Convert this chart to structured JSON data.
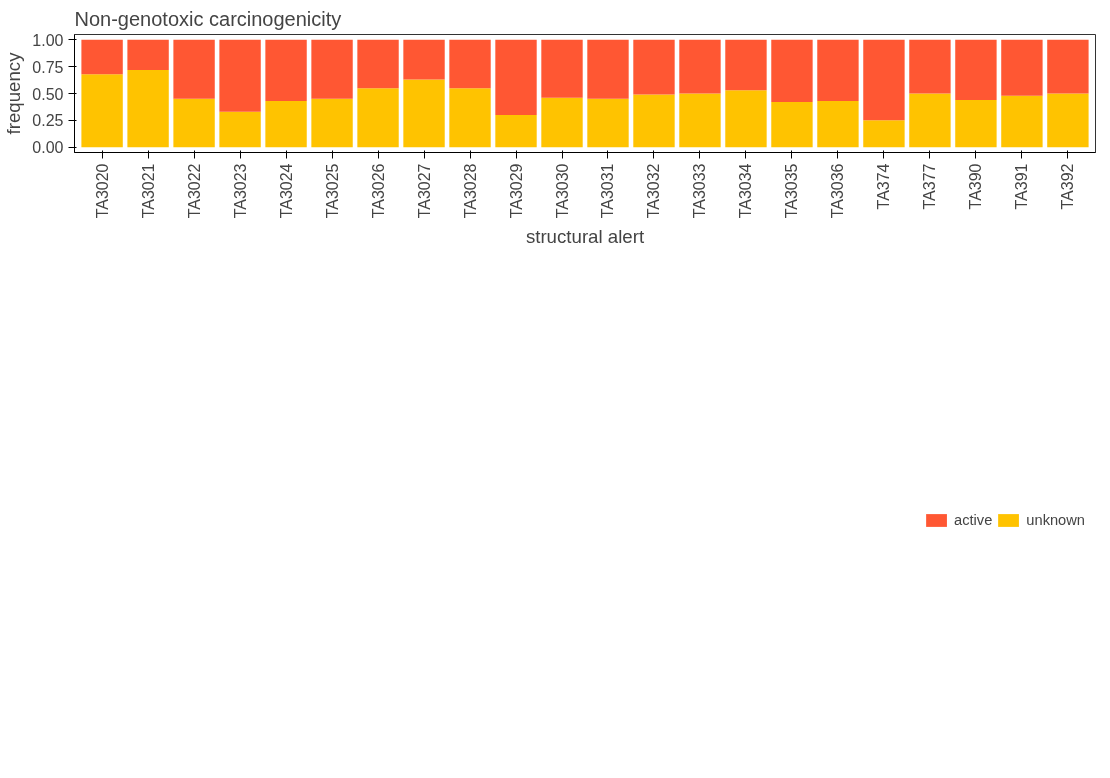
{
  "chart_data": {
    "type": "bar",
    "title": "Non-genotoxic carcinogenicity",
    "xlabel": "structural alert",
    "ylabel": "frequency",
    "categories": [
      "TA3020",
      "TA3021",
      "TA3022",
      "TA3023",
      "TA3024",
      "TA3025",
      "TA3026",
      "TA3027",
      "TA3028",
      "TA3029",
      "TA3030",
      "TA3031",
      "TA3032",
      "TA3033",
      "TA3034",
      "TA3035",
      "TA3036",
      "TA374",
      "TA377",
      "TA390",
      "TA391",
      "TA392"
    ],
    "stacked": true,
    "series": [
      {
        "name": "unknown",
        "color": "#ffc300",
        "values": [
          0.68,
          0.72,
          0.45,
          0.33,
          0.43,
          0.45,
          0.55,
          0.63,
          0.55,
          0.3,
          0.46,
          0.45,
          0.49,
          0.5,
          0.53,
          0.42,
          0.43,
          0.25,
          0.5,
          0.44,
          0.48,
          0.5
        ]
      },
      {
        "name": "active",
        "color": "#ff5733",
        "values": [
          0.32,
          0.28,
          0.55,
          0.67,
          0.57,
          0.55,
          0.45,
          0.37,
          0.45,
          0.7,
          0.54,
          0.55,
          0.51,
          0.5,
          0.47,
          0.58,
          0.57,
          0.75,
          0.5,
          0.56,
          0.52,
          0.5
        ]
      }
    ],
    "ylim": [
      -0.05,
      1.05
    ],
    "yticks": [
      {
        "value": 0,
        "label": "0.00"
      },
      {
        "value": 0.25,
        "label": "0.25"
      },
      {
        "value": 0.5,
        "label": "0.50"
      },
      {
        "value": 0.75,
        "label": "0.75"
      },
      {
        "value": 1,
        "label": "1.00"
      }
    ],
    "grid": false,
    "legend": "bottom"
  }
}
